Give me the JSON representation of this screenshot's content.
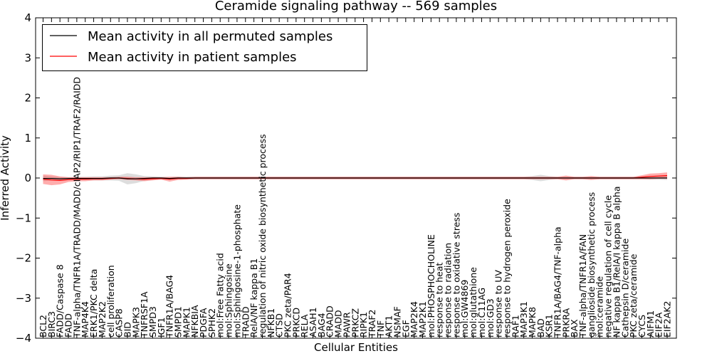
{
  "chart_data": {
    "type": "line",
    "title": "Ceramide signaling pathway -- 569 samples",
    "xlabel": "Cellular Entities",
    "ylabel": "Inferred Activity",
    "ylim": [
      -4,
      4
    ],
    "yticks": [
      -4,
      -3,
      -2,
      -1,
      0,
      1,
      2,
      3,
      4
    ],
    "ytick_labels": [
      "−4",
      "−3",
      "−2",
      "−1",
      "0",
      "1",
      "2",
      "3",
      "4"
    ],
    "legend": {
      "position": "top-left",
      "entries": [
        {
          "label": "Mean activity in all permuted samples",
          "color": "#000000"
        },
        {
          "label": "Mean activity in patient samples",
          "color": "#ff0000"
        }
      ]
    },
    "categories": [
      "BCL2",
      "BIRC3",
      "FADD/Caspase 8",
      "FADD",
      "TNF-alpha/TNFR1A/TRADD/MADD/cIAP2/RIP1/TRAF2/RAIDD",
      "MAP4K4",
      "ERK1/PKC delta",
      "MAP2K2",
      "cell proliferation",
      "CASP8",
      "BID",
      "MAPK3",
      "TNFRSF1A",
      "SMPD3",
      "IGF1",
      "TNFR1A/BAG4",
      "SMPD1",
      "MAPK1",
      "NFKBIA",
      "PDGFA",
      "SPHK2",
      "mol:Free Fatty acid",
      "mol:Sphingosine",
      "mol:Sphingosine-1-phosphate",
      "TRADD",
      "RelA/NF kappa B1",
      "regulation of nitric oxide biosynthetic process",
      "NFKB1",
      "CTSD",
      "PKC zeta/PAR4",
      "PRKCD",
      "RELA",
      "ASAH1",
      "BAG4",
      "CRADD",
      "MADD",
      "PAWR",
      "PRKCZ",
      "RIPK1",
      "TRAF2",
      "TNF",
      "AKT1",
      "NSMAF",
      "EGF",
      "MAP2K4",
      "MAP2K1",
      "mol:PHOSPHOCHOLINE",
      "response to heat",
      "response to radiation",
      "response to oxidative stress",
      "mol:GW4869",
      "mol:glutathione",
      "mol:C11AG",
      "mol:GD3",
      "response to UV",
      "response to hydrogen peroxide",
      "RAF1",
      "MAP3K1",
      "MAPK8",
      "BAD",
      "KSR1",
      "TNFR1A/BAG4/TNF-alpha",
      "PRKRA",
      "BAX",
      "TNF-alpha/TNFR1A/FAN",
      "ganglioside biosynthetic process",
      "mol:ceramide",
      "negative regulation of cell cycle",
      "NF kappa B1/RelA/I kappa B alpha",
      "Cathepsin D/ceramide",
      "PKC zeta/ceramide",
      "CYCS",
      "AIFM1",
      "EIF2A",
      "EIF2AK2"
    ],
    "series": [
      {
        "name": "Mean activity in all permuted samples",
        "color": "#000000",
        "values": [
          -0.01,
          -0.01,
          -0.02,
          -0.01,
          -0.01,
          -0.01,
          -0.01,
          -0.01,
          0.0,
          0.0,
          -0.02,
          -0.02,
          -0.01,
          0.0,
          0.0,
          -0.01,
          0.0,
          0.0,
          0.0,
          0.0,
          0.0,
          0.0,
          0.0,
          0.0,
          0.0,
          0.0,
          0.0,
          0.0,
          0.0,
          0.0,
          0.0,
          0.0,
          0.0,
          0.0,
          0.0,
          0.0,
          0.0,
          0.0,
          0.0,
          0.0,
          0.0,
          0.0,
          0.0,
          0.0,
          0.0,
          0.0,
          0.0,
          0.0,
          0.0,
          0.0,
          0.0,
          0.0,
          0.0,
          0.0,
          0.0,
          0.0,
          0.0,
          0.0,
          0.0,
          0.0,
          0.0,
          0.0,
          0.0,
          0.0,
          0.0,
          0.0,
          0.0,
          0.0,
          0.0,
          0.0,
          0.0,
          0.0,
          0.0,
          0.0,
          0.0
        ],
        "spread": [
          0.07,
          0.05,
          0.04,
          0.03,
          0.04,
          0.04,
          0.05,
          0.05,
          0.06,
          0.07,
          0.14,
          0.11,
          0.06,
          0.04,
          0.03,
          0.03,
          0.03,
          0.03,
          0.03,
          0.03,
          0.03,
          0.03,
          0.03,
          0.03,
          0.03,
          0.03,
          0.03,
          0.03,
          0.03,
          0.03,
          0.03,
          0.03,
          0.03,
          0.03,
          0.03,
          0.03,
          0.03,
          0.03,
          0.03,
          0.03,
          0.03,
          0.03,
          0.03,
          0.03,
          0.03,
          0.03,
          0.03,
          0.03,
          0.03,
          0.03,
          0.03,
          0.03,
          0.03,
          0.03,
          0.03,
          0.03,
          0.03,
          0.03,
          0.05,
          0.08,
          0.05,
          0.03,
          0.03,
          0.03,
          0.03,
          0.03,
          0.03,
          0.03,
          0.03,
          0.03,
          0.03,
          0.03,
          0.04,
          0.04,
          0.05
        ]
      },
      {
        "name": "Mean activity in patient samples",
        "color": "#ff0000",
        "values": [
          -0.03,
          -0.05,
          -0.06,
          -0.04,
          -0.03,
          -0.03,
          -0.02,
          -0.02,
          -0.01,
          0.0,
          -0.01,
          -0.02,
          -0.03,
          -0.02,
          -0.01,
          -0.03,
          -0.01,
          -0.01,
          0.0,
          0.0,
          0.0,
          0.0,
          0.0,
          0.0,
          0.0,
          0.0,
          0.0,
          0.0,
          0.0,
          0.0,
          0.0,
          0.0,
          0.0,
          0.0,
          0.0,
          0.0,
          0.0,
          0.0,
          0.0,
          0.0,
          0.0,
          0.0,
          0.0,
          0.0,
          0.0,
          0.0,
          0.0,
          0.0,
          0.0,
          0.0,
          0.0,
          0.0,
          0.0,
          0.0,
          0.0,
          0.0,
          0.0,
          0.0,
          0.0,
          0.0,
          0.0,
          0.0,
          0.0,
          0.0,
          0.0,
          0.0,
          0.0,
          0.0,
          0.0,
          0.0,
          0.0,
          0.02,
          0.04,
          0.05,
          0.06
        ],
        "spread": [
          0.12,
          0.13,
          0.1,
          0.06,
          0.05,
          0.05,
          0.04,
          0.04,
          0.03,
          0.03,
          0.04,
          0.04,
          0.05,
          0.04,
          0.03,
          0.06,
          0.04,
          0.03,
          0.03,
          0.03,
          0.03,
          0.03,
          0.03,
          0.03,
          0.03,
          0.03,
          0.03,
          0.03,
          0.03,
          0.03,
          0.03,
          0.03,
          0.03,
          0.03,
          0.03,
          0.03,
          0.03,
          0.03,
          0.03,
          0.03,
          0.03,
          0.03,
          0.03,
          0.03,
          0.03,
          0.03,
          0.03,
          0.03,
          0.03,
          0.03,
          0.03,
          0.03,
          0.03,
          0.03,
          0.03,
          0.03,
          0.03,
          0.03,
          0.03,
          0.03,
          0.03,
          0.03,
          0.06,
          0.03,
          0.03,
          0.05,
          0.03,
          0.03,
          0.03,
          0.03,
          0.03,
          0.05,
          0.07,
          0.07,
          0.08
        ]
      }
    ]
  }
}
